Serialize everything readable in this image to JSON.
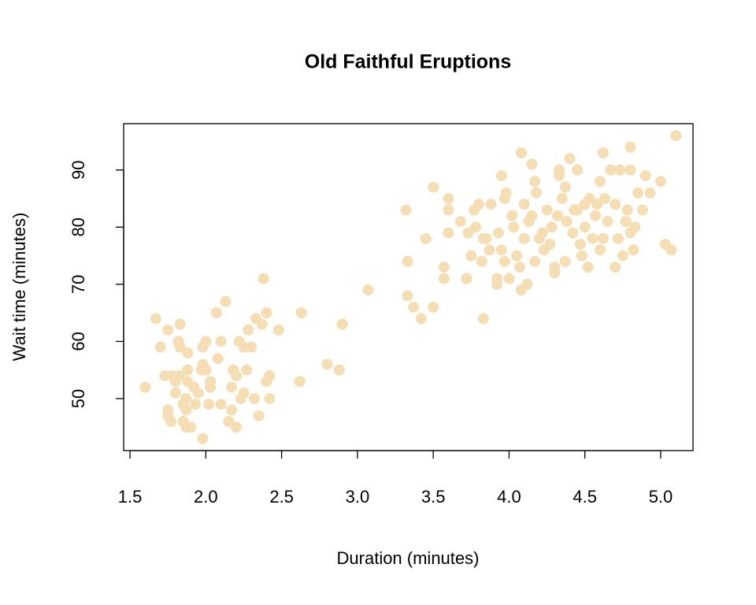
{
  "chart_data": {
    "type": "scatter",
    "title": "Old Faithful Eruptions",
    "x_label": "Duration (minutes)",
    "y_label": "Wait time (minutes)",
    "color": "#f5deb3",
    "xlim": [
      1.458,
      5.213
    ],
    "ylim": [
      40.9,
      98.1
    ],
    "xticks": [
      {
        "value": 1.5,
        "label": "1.5"
      },
      {
        "value": 2,
        "label": "2.0"
      },
      {
        "value": 2.5,
        "label": "2.5"
      },
      {
        "value": 3,
        "label": "3.0"
      },
      {
        "value": 3.5,
        "label": "3.5"
      },
      {
        "value": 4,
        "label": "4.0"
      },
      {
        "value": 4.5,
        "label": "4.5"
      },
      {
        "value": 5,
        "label": "5.0"
      }
    ],
    "yticks": [
      50,
      60,
      70,
      80,
      90
    ],
    "x": [
      1.6,
      1.67,
      1.7,
      1.73,
      1.75,
      1.75,
      1.75,
      1.77,
      1.78,
      1.8,
      1.8,
      1.82,
      1.83,
      1.83,
      1.83,
      1.85,
      1.85,
      1.87,
      1.87,
      1.87,
      1.88,
      1.88,
      1.88,
      1.9,
      1.92,
      1.93,
      1.95,
      1.97,
      1.98,
      1.98,
      1.98,
      2.0,
      2.0,
      2.02,
      2.03,
      2.03,
      2.07,
      2.08,
      2.1,
      2.1,
      2.13,
      2.15,
      2.17,
      2.17,
      2.18,
      2.2,
      2.2,
      2.22,
      2.23,
      2.25,
      2.25,
      2.27,
      2.28,
      2.3,
      2.32,
      2.33,
      2.35,
      2.37,
      2.38,
      2.4,
      2.4,
      2.42,
      2.42,
      2.48,
      2.62,
      2.63,
      2.8,
      2.88,
      2.9,
      3.07,
      3.32,
      3.33,
      3.33,
      3.37,
      3.42,
      3.45,
      3.5,
      3.5,
      3.57,
      3.57,
      3.6,
      3.6,
      3.6,
      3.68,
      3.72,
      3.73,
      3.75,
      3.77,
      3.78,
      3.8,
      3.82,
      3.83,
      3.83,
      3.85,
      3.87,
      3.88,
      3.92,
      3.92,
      3.93,
      3.95,
      3.95,
      3.97,
      3.98,
      4.0,
      4.02,
      4.03,
      4.05,
      4.07,
      4.08,
      4.08,
      4.1,
      4.1,
      4.12,
      4.13,
      4.15,
      4.17,
      4.17,
      4.18,
      4.2,
      4.22,
      4.23,
      4.25,
      4.27,
      4.28,
      4.3,
      4.3,
      4.32,
      4.33,
      4.33,
      4.35,
      4.37,
      4.38,
      4.4,
      4.42,
      4.43,
      4.45,
      4.47,
      4.48,
      4.5,
      4.5,
      4.52,
      4.53,
      4.55,
      4.57,
      4.58,
      4.6,
      4.6,
      4.62,
      4.63,
      4.65,
      4.67,
      4.7,
      4.7,
      4.72,
      4.73,
      4.75,
      4.77,
      4.78,
      4.8,
      4.8,
      4.8,
      4.82,
      4.83,
      4.85,
      4.88,
      4.9,
      4.93,
      5.0,
      5.03,
      5.07,
      5.1,
      4.37,
      4.15,
      3.97,
      4.45,
      4.62
    ],
    "values": [
      52,
      64,
      59,
      54,
      47,
      48,
      62,
      46,
      54,
      51,
      53,
      60,
      54,
      59,
      63,
      46,
      49,
      45,
      48,
      50,
      53,
      55,
      58,
      45,
      52,
      49,
      51,
      55,
      43,
      56,
      59,
      55,
      60,
      49,
      52,
      53,
      65,
      57,
      60,
      49,
      67,
      46,
      48,
      52,
      55,
      45,
      54,
      60,
      50,
      59,
      51,
      55,
      62,
      59,
      50,
      64,
      47,
      63,
      71,
      65,
      53,
      50,
      54,
      62,
      53,
      65,
      56,
      55,
      63,
      69,
      83,
      74,
      68,
      66,
      64,
      78,
      87,
      66,
      73,
      71,
      79,
      83,
      85,
      81,
      71,
      79,
      75,
      83,
      80,
      84,
      74,
      64,
      78,
      78,
      76,
      84,
      71,
      70,
      79,
      76,
      89,
      85,
      86,
      71,
      82,
      80,
      75,
      73,
      69,
      93,
      84,
      78,
      70,
      81,
      91,
      88,
      74,
      86,
      78,
      79,
      76,
      83,
      77,
      80,
      73,
      72,
      82,
      90,
      89,
      85,
      74,
      81,
      92,
      79,
      83,
      90,
      77,
      75,
      84,
      80,
      73,
      85,
      78,
      82,
      84,
      88,
      76,
      93,
      85,
      81,
      90,
      84,
      73,
      78,
      90,
      75,
      81,
      83,
      94,
      90,
      79,
      76,
      80,
      86,
      83,
      89,
      86,
      88,
      77,
      76,
      96,
      87,
      82,
      74,
      83,
      78
    ]
  }
}
